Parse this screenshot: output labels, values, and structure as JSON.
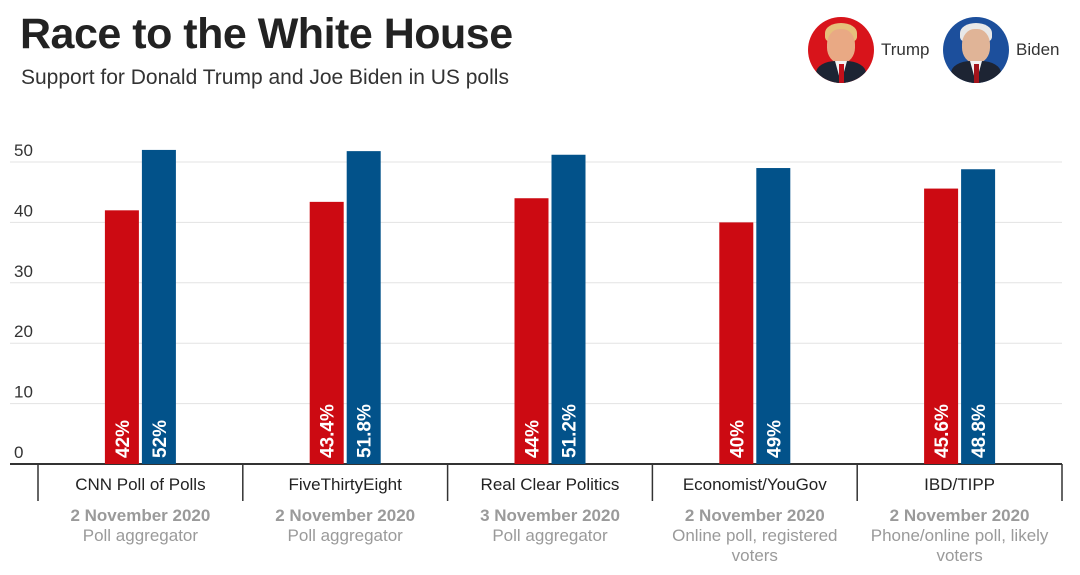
{
  "header": {
    "title": "Race to the White House",
    "subtitle": "Support for Donald Trump and Joe Biden in US polls"
  },
  "legend": [
    {
      "name": "Trump",
      "color": "#cc0a12",
      "icon": "trump-portrait-icon"
    },
    {
      "name": "Biden",
      "color": "#02528a",
      "icon": "biden-portrait-icon"
    }
  ],
  "chart_data": {
    "type": "bar",
    "title": "Race to the White House",
    "subtitle": "Support for Donald Trump and Joe Biden in US polls",
    "xlabel": "",
    "ylabel": "",
    "ylim": [
      0,
      50
    ],
    "yticks": [
      0,
      10,
      20,
      30,
      40,
      50
    ],
    "grid": true,
    "legend_position": "top-right",
    "categories": [
      "CNN Poll of Polls",
      "FiveThirtyEight",
      "Real Clear Politics",
      "Economist/YouGov",
      "IBD/TIPP"
    ],
    "dates": [
      "2 November 2020",
      "2 November 2020",
      "3 November 2020",
      "2 November 2020",
      "2 November 2020"
    ],
    "descriptions": [
      "Poll aggregator",
      "Poll aggregator",
      "Poll aggregator",
      "Online poll, registered voters",
      "Phone/online poll, likely voters"
    ],
    "series": [
      {
        "name": "Trump",
        "color": "#cc0a12",
        "values": [
          42,
          43.4,
          44,
          40,
          45.6
        ],
        "labels": [
          "42%",
          "43.4%",
          "44%",
          "40%",
          "45.6%"
        ]
      },
      {
        "name": "Biden",
        "color": "#02528a",
        "values": [
          52,
          51.8,
          51.2,
          49,
          48.8
        ],
        "labels": [
          "52%",
          "51.8%",
          "51.2%",
          "49%",
          "48.8%"
        ]
      }
    ]
  }
}
